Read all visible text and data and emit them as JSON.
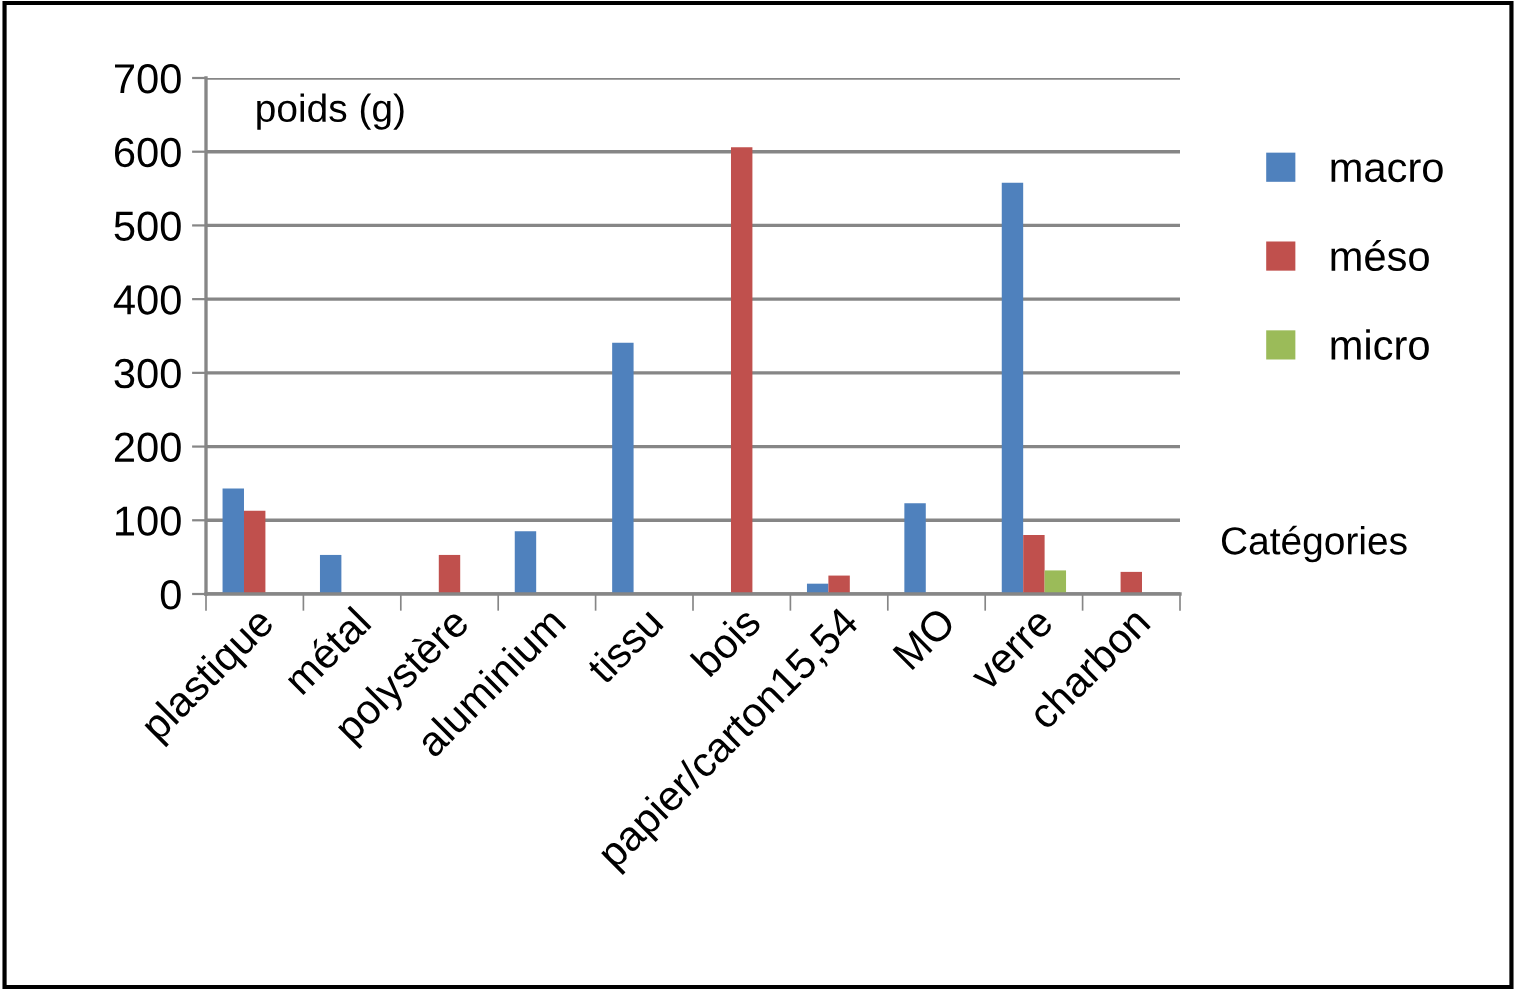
{
  "chart_data": {
    "type": "bar",
    "ylabel": "poids (g)",
    "xlabel": "Catégories",
    "categories": [
      "plastique",
      "métal",
      "polystère",
      "aluminium",
      "tissu",
      "bois",
      "papier/carton15,54",
      "MO",
      "verre",
      "charbon"
    ],
    "series": [
      {
        "name": "macro",
        "color": "#4f81bd",
        "values": [
          143,
          53,
          null,
          85,
          341,
          null,
          14,
          123,
          558,
          null
        ]
      },
      {
        "name": "méso",
        "color": "#c0504d",
        "values": [
          113,
          null,
          53,
          null,
          null,
          606,
          25,
          null,
          80,
          30
        ]
      },
      {
        "name": "micro",
        "color": "#9bbb59",
        "values": [
          null,
          null,
          null,
          null,
          null,
          null,
          null,
          null,
          32,
          null
        ]
      }
    ],
    "ylim": [
      0,
      700
    ],
    "yticks": [
      0,
      100,
      200,
      300,
      400,
      500,
      600,
      700
    ],
    "grid": "y",
    "legend": "right"
  }
}
